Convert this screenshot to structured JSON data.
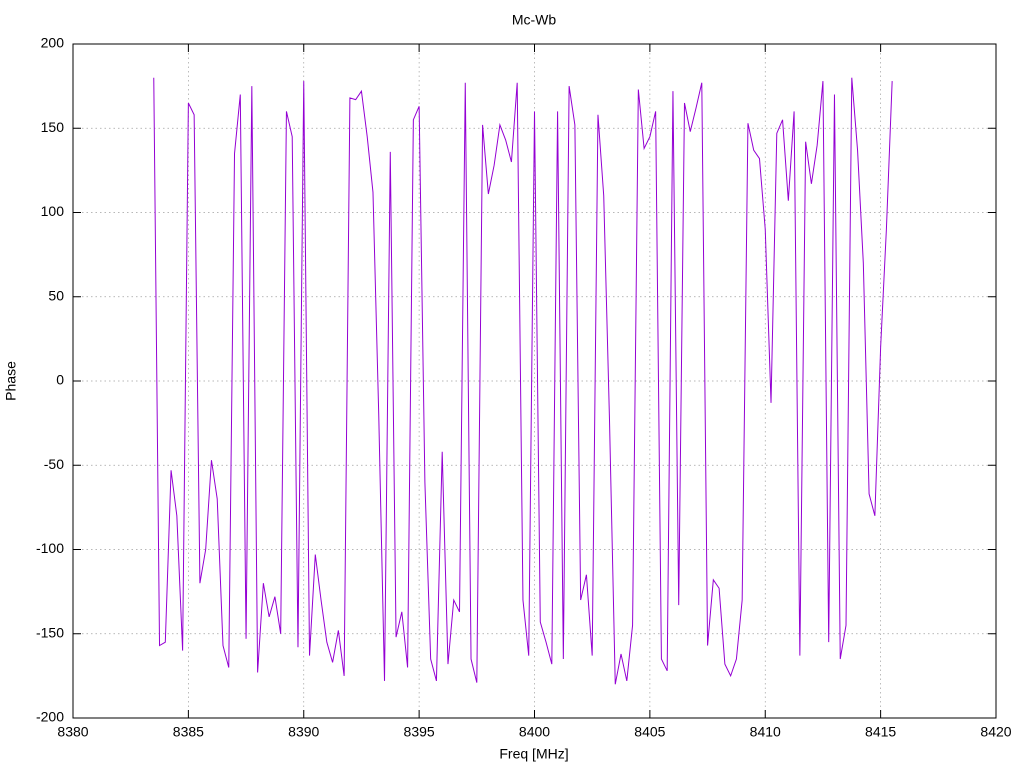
{
  "chart_data": {
    "type": "line",
    "title": "Mc-Wb",
    "xlabel": "Freq [MHz]",
    "ylabel": "Phase",
    "color": "#9400d3",
    "grid": true,
    "xlim": [
      8380,
      8420
    ],
    "xticks": [
      8380,
      8385,
      8390,
      8395,
      8400,
      8405,
      8410,
      8415,
      8420
    ],
    "ylim": [
      -200,
      200
    ],
    "yticks": [
      -200,
      -150,
      -100,
      -50,
      0,
      50,
      100,
      150,
      200
    ],
    "x": [
      8383.5,
      8383.75,
      8384,
      8384.25,
      8384.5,
      8384.75,
      8385,
      8385.25,
      8385.5,
      8385.75,
      8386,
      8386.25,
      8386.5,
      8386.75,
      8387,
      8387.25,
      8387.5,
      8387.75,
      8388,
      8388.25,
      8388.5,
      8388.75,
      8389,
      8389.25,
      8389.5,
      8389.75,
      8390,
      8390.25,
      8390.5,
      8390.75,
      8391,
      8391.25,
      8391.5,
      8391.75,
      8392,
      8392.25,
      8392.5,
      8392.75,
      8393,
      8393.25,
      8393.5,
      8393.75,
      8394,
      8394.25,
      8394.5,
      8394.75,
      8395,
      8395.25,
      8395.5,
      8395.75,
      8396,
      8396.25,
      8396.5,
      8396.75,
      8397,
      8397.25,
      8397.5,
      8397.75,
      8398,
      8398.25,
      8398.5,
      8398.75,
      8399,
      8399.25,
      8399.5,
      8399.75,
      8400,
      8400.25,
      8400.5,
      8400.75,
      8401,
      8401.25,
      8401.5,
      8401.75,
      8402,
      8402.25,
      8402.5,
      8402.75,
      8403,
      8403.25,
      8403.5,
      8403.75,
      8404,
      8404.25,
      8404.5,
      8404.75,
      8405,
      8405.25,
      8405.5,
      8405.75,
      8406,
      8406.25,
      8406.5,
      8406.75,
      8407,
      8407.25,
      8407.5,
      8407.75,
      8408,
      8408.25,
      8408.5,
      8408.75,
      8409,
      8409.25,
      8409.5,
      8409.75,
      8410,
      8410.25,
      8410.5,
      8410.75,
      8411,
      8411.25,
      8411.5,
      8411.75,
      8412,
      8412.25,
      8412.5,
      8412.75,
      8413,
      8413.25,
      8413.5,
      8413.75,
      8414,
      8414.25,
      8414.5,
      8414.75,
      8415,
      8415.25,
      8415.5
    ],
    "values": [
      180,
      -157,
      -155,
      -53,
      -80,
      -160,
      165,
      158,
      -120,
      -100,
      -47,
      -70,
      -157,
      -170,
      135,
      170,
      -153,
      175,
      -173,
      -120,
      -140,
      -128,
      -150,
      160,
      145,
      -158,
      178,
      -163,
      -103,
      -130,
      -155,
      -167,
      -148,
      -175,
      168,
      167,
      172,
      145,
      112,
      -20,
      -178,
      136,
      -152,
      -137,
      -170,
      155,
      163,
      -60,
      -165,
      -178,
      -42,
      -168,
      -130,
      -137,
      177,
      -165,
      -179,
      152,
      111,
      128,
      152,
      143,
      130,
      177,
      -130,
      -163,
      160,
      -143,
      -155,
      -168,
      160,
      -165,
      175,
      152,
      -130,
      -115,
      -163,
      158,
      110,
      -23,
      -180,
      -162,
      -178,
      -145,
      173,
      138,
      145,
      160,
      -165,
      -172,
      172,
      -133,
      165,
      148,
      162,
      177,
      -157,
      -118,
      -123,
      -168,
      -175,
      -165,
      -130,
      153,
      137,
      132,
      90,
      -13,
      147,
      155,
      107,
      160,
      -163,
      142,
      117,
      140,
      178,
      -155,
      170,
      -165,
      -145,
      180,
      137,
      70,
      -67,
      -80,
      20,
      90,
      178
    ]
  }
}
